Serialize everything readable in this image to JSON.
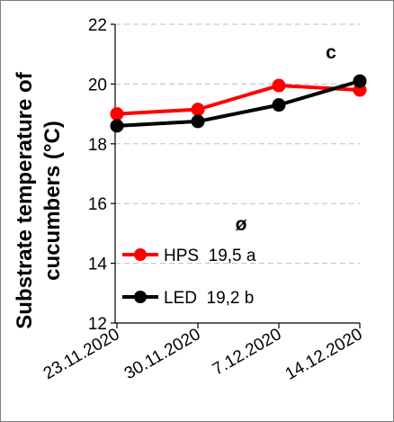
{
  "chart_data": {
    "type": "line",
    "ylabel": "Substrate temperature of cucumbers (°C)",
    "ylabel_lines": [
      "Substrate temperature of",
      "cucumbers (°C)"
    ],
    "xlabel": "",
    "categories": [
      "23.11.2020",
      "30.11.2020",
      "7.12.2020",
      "14.12.2020"
    ],
    "ylim": [
      12,
      22
    ],
    "yticks": [
      "12",
      "14",
      "16",
      "18",
      "20",
      "22"
    ],
    "grid": "horizontal dashed",
    "panel_label": "c",
    "average_symbol": "ø",
    "series": [
      {
        "name": "HPS",
        "legend_text": "HPS  19,5 a",
        "color": "#ff0000",
        "values": [
          19.0,
          19.15,
          19.95,
          19.8
        ]
      },
      {
        "name": "LED",
        "legend_text": "LED  19,2 b",
        "color": "#000000",
        "values": [
          18.6,
          18.75,
          19.3,
          20.1
        ]
      }
    ]
  }
}
